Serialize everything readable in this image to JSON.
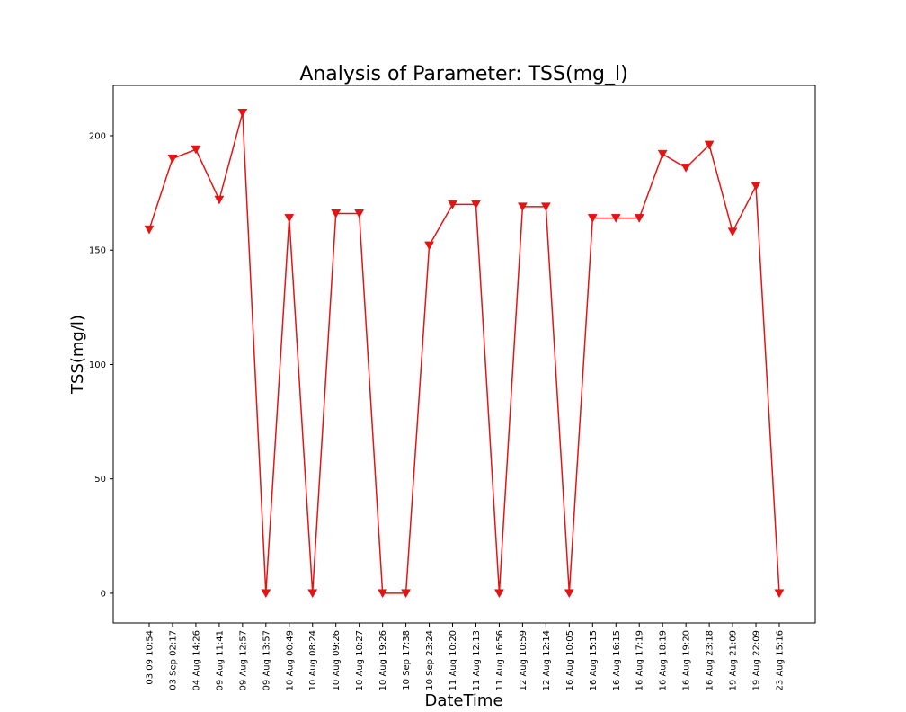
{
  "chart_data": {
    "type": "line",
    "title": "Analysis of Parameter: TSS(mg_l)",
    "xlabel": "DateTime",
    "ylabel": "TSS(mg/l)",
    "ylim": [
      -13,
      222
    ],
    "yticks": [
      0,
      50,
      100,
      150,
      200
    ],
    "grid": false,
    "legend": "none",
    "line_color": "#e41414",
    "marker": "triangle-down",
    "categories": [
      "03 09 10:54",
      "03 Sep 02:17",
      "04 Aug 14:26",
      "09 Aug 11:41",
      "09 Aug 12:57",
      "09 Aug 13:57",
      "10 Aug 00:49",
      "10 Aug 08:24",
      "10 Aug 09:26",
      "10 Aug 10:27",
      "10 Aug 19:26",
      "10 Sep 17:38",
      "10 Sep 23:24",
      "11 Aug 10:20",
      "11 Aug 12:13",
      "11 Aug 16:56",
      "12 Aug 10:59",
      "12 Aug 12:14",
      "16 Aug 10:05",
      "16 Aug 15:15",
      "16 Aug 16:15",
      "16 Aug 17:19",
      "16 Aug 18:19",
      "16 Aug 19:20",
      "16 Aug 23:18",
      "19 Aug 21:09",
      "19 Aug 22:09",
      "23 Aug 15:16"
    ],
    "values": [
      159,
      190,
      194,
      172,
      210,
      0,
      164,
      0,
      166,
      166,
      0,
      0,
      152,
      170,
      170,
      0,
      169,
      169,
      0,
      164,
      164,
      164,
      192,
      186,
      196,
      158,
      178,
      0
    ]
  }
}
